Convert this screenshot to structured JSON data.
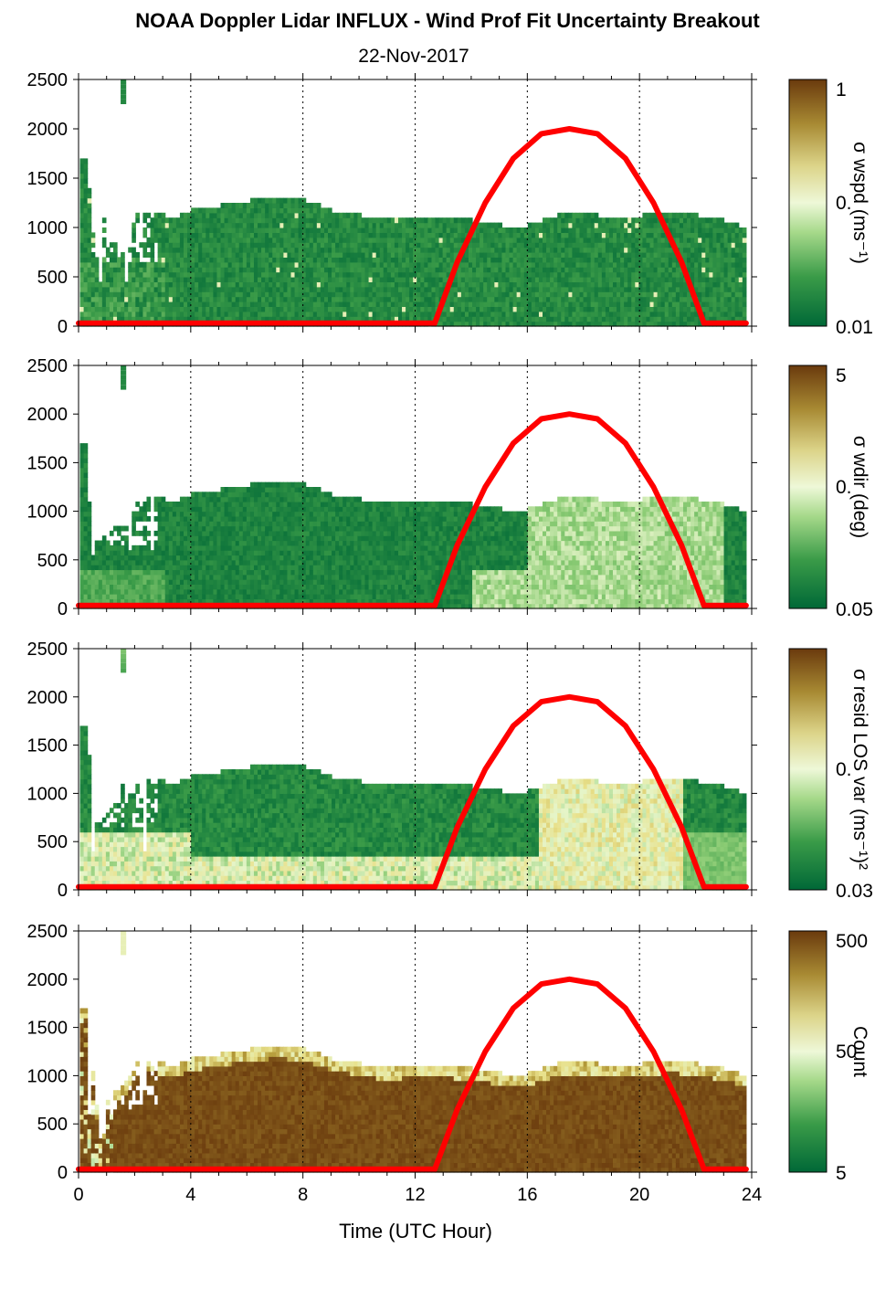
{
  "title": "NOAA Doppler Lidar INFLUX - Wind Prof Fit Uncertainty Breakout",
  "subtitle": "22-Nov-2017",
  "chart_data": {
    "type": "heatmap",
    "xlabel": "Time (UTC Hour)",
    "xlim": [
      0,
      24
    ],
    "xticks": [
      0,
      4,
      8,
      12,
      16,
      20,
      24
    ],
    "ylim": [
      0,
      2500
    ],
    "yticks": [
      0,
      500,
      1000,
      1500,
      2000,
      2500
    ],
    "grid": "dotted vertical lines at 4, 8, 12, 16, 20, 24",
    "colormap": [
      "#006837",
      "#3a9b48",
      "#8ccc75",
      "#e6f5c9",
      "#e8e08a",
      "#b59b3a",
      "#6a3a0d"
    ],
    "overlay_line": {
      "color": "#ff0000",
      "description": "solar elevation curve",
      "points": [
        [
          0,
          30
        ],
        [
          12.7,
          30
        ],
        [
          13.5,
          650
        ],
        [
          14.5,
          1250
        ],
        [
          15.5,
          1700
        ],
        [
          16.5,
          1950
        ],
        [
          17.5,
          2000
        ],
        [
          18.5,
          1950
        ],
        [
          19.5,
          1700
        ],
        [
          20.5,
          1250
        ],
        [
          21.5,
          650
        ],
        [
          22.3,
          30
        ],
        [
          23.8,
          30
        ]
      ]
    },
    "panels": [
      {
        "colorbar_label": "σ wspd (ms⁻¹)",
        "colorbar_ticks": [
          "1",
          "0.",
          "0.01"
        ],
        "scale": "log",
        "pattern": "mostly_low"
      },
      {
        "colorbar_label": "σ wdir (deg)",
        "colorbar_ticks": [
          "5",
          "0.",
          "0.05"
        ],
        "scale": "log",
        "pattern": "day_elevated"
      },
      {
        "colorbar_label": "σ resid LOS var (ms⁻¹)²",
        "colorbar_ticks": [
          "0.",
          "0.03"
        ],
        "scale": "log",
        "pattern": "low_levels_and_day_high"
      },
      {
        "colorbar_label": "Count",
        "colorbar_ticks": [
          "500",
          "50",
          "5"
        ],
        "scale": "log",
        "pattern": "mostly_high"
      }
    ],
    "profile_top": {
      "hours": [
        0.2,
        0.6,
        1.0,
        1.6,
        2.0,
        2.5,
        3.0,
        3.5,
        4.0,
        5.0,
        6.0,
        7.0,
        8.0,
        9.0,
        10.0,
        11.0,
        12.0,
        13.0,
        14.0,
        15.0,
        16.0,
        17.0,
        18.0,
        19.0,
        20.0,
        21.0,
        22.0,
        23.0,
        23.8
      ],
      "heights": [
        1700,
        600,
        800,
        900,
        1100,
        1150,
        1100,
        1100,
        1150,
        1200,
        1250,
        1280,
        1250,
        1150,
        1100,
        1050,
        1100,
        1080,
        1050,
        1000,
        1000,
        1100,
        1120,
        1080,
        1100,
        1130,
        1100,
        1050,
        970
      ]
    }
  }
}
